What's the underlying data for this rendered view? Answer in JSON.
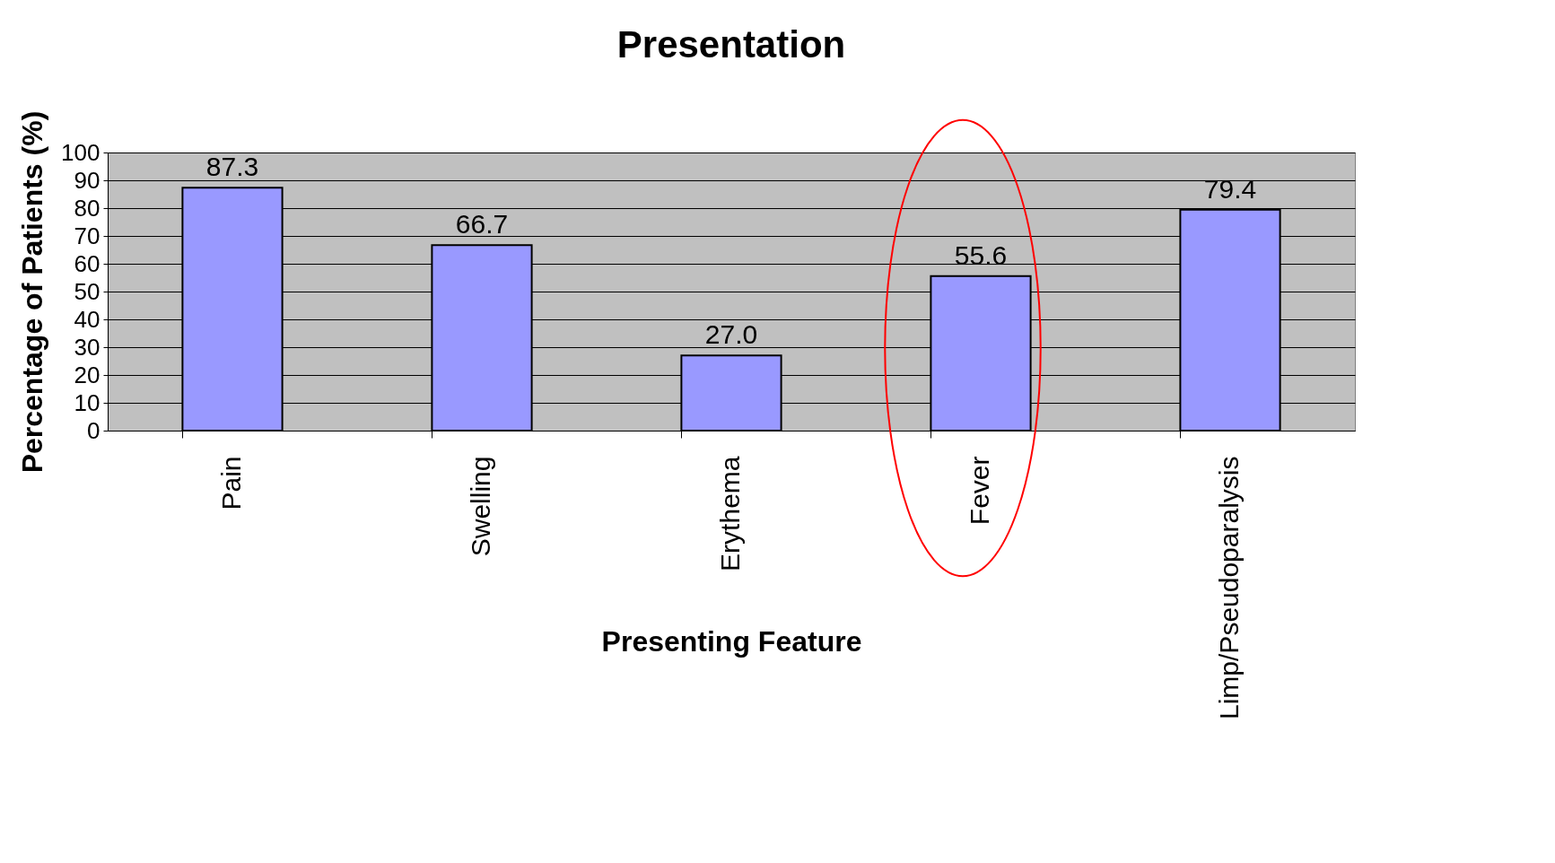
{
  "chart_data": {
    "type": "bar",
    "title": "Presentation",
    "xlabel": "Presenting Feature",
    "ylabel": "Percentage of Patients (%)",
    "categories": [
      "Pain",
      "Swelling",
      "Erythema",
      "Fever",
      "Limp/Pseudoparalysis"
    ],
    "values": [
      87.3,
      66.7,
      27.0,
      55.6,
      79.4
    ],
    "value_labels": [
      "87.3",
      "66.7",
      "27.0",
      "55.6",
      "79.4"
    ],
    "color": "#9999ff",
    "ylim": [
      0,
      100
    ],
    "yticks": [
      0,
      10,
      20,
      30,
      40,
      50,
      60,
      70,
      80,
      90,
      100
    ],
    "grid": "y"
  }
}
